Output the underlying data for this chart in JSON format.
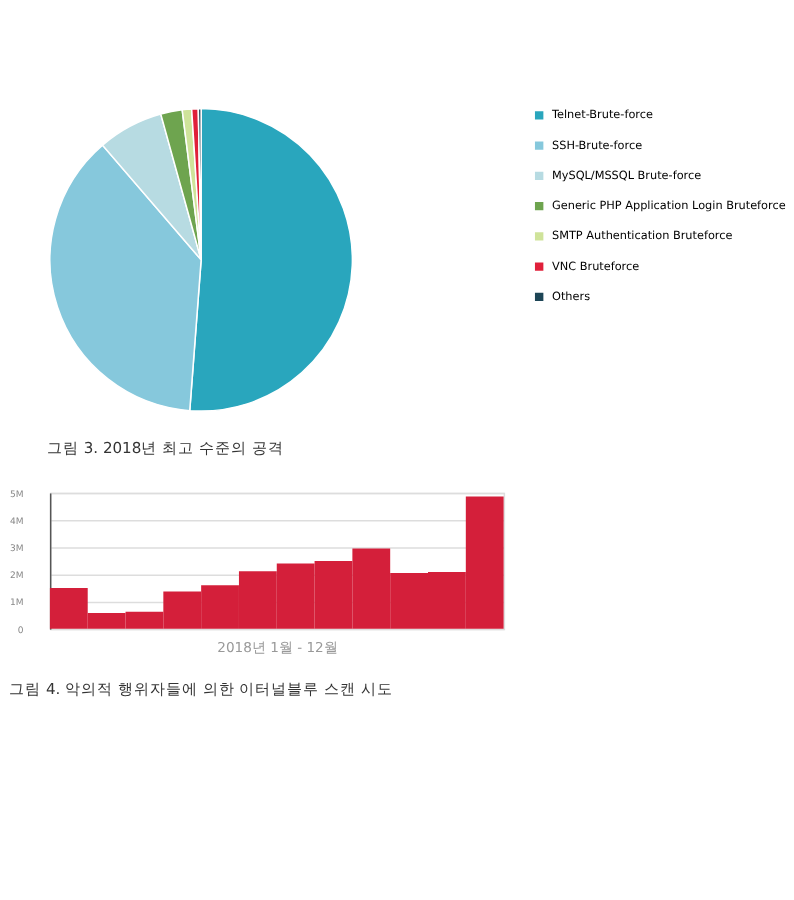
{
  "chart_data": [
    {
      "type": "pie",
      "categories": [
        "Telnet-Brute-force",
        "SSH-Brute-force",
        "MySQL/MSSQL Brute-force",
        "Generic PHP Application Login Bruteforce",
        "SMTP Authentication Bruteforce",
        "VNC Bruteforce",
        "Others"
      ],
      "values": [
        51.2,
        37.5,
        7,
        2.3,
        1,
        0.7,
        0.3
      ],
      "colors": [
        "#29a6bd",
        "#86c8dc",
        "#b7dbe2",
        "#6ea44f",
        "#cfe39a",
        "#e0203a",
        "#1d4556"
      ],
      "legend": "right",
      "annotations": [
        "그림 3. 2018년 최고 수준의 공격"
      ]
    },
    {
      "type": "bar",
      "categories": [
        null,
        null,
        null,
        null,
        null,
        null,
        null,
        null,
        null,
        null,
        null,
        null
      ],
      "values": [
        1.5,
        0.58,
        0.63,
        1.37,
        1.6,
        2.12,
        2.4,
        2.49,
        2.95,
        2.05,
        2.09,
        4.86
      ],
      "color": "#d41f3a",
      "xlabel": "2018년 1월 - 12월",
      "ylim": [
        0,
        5
      ],
      "yticks": [
        {
          "value": 0,
          "label": "0"
        },
        {
          "value": 1,
          "label": "1M"
        },
        {
          "value": 2,
          "label": "2M"
        },
        {
          "value": 3,
          "label": "3M"
        },
        {
          "value": 4,
          "label": "4M"
        },
        {
          "value": 5,
          "label": "5M"
        }
      ],
      "grid": "y",
      "tick_labels": "y",
      "annotations": [
        "그림 4. 악의적 행위자들에 의한 이터널블루 스캔 시도"
      ]
    }
  ]
}
